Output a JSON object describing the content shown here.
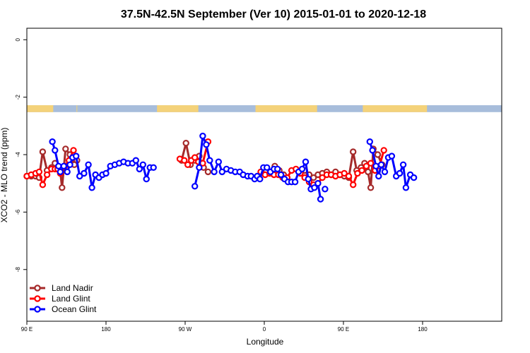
{
  "chart_data": {
    "type": "line",
    "title": "37.5N-42.5N September (Ver 10)   2015-01-01 to 2020-12-18",
    "xlabel": "Longitude",
    "ylabel": "XCO2 - MLO trend (ppm)",
    "xlim": [
      -90,
      450
    ],
    "ylim": [
      -9.8,
      0.4
    ],
    "x_ticks": [
      {
        "value": -90,
        "label": "90 E"
      },
      {
        "value": 0,
        "label": "180"
      },
      {
        "value": 90,
        "label": "90 W"
      },
      {
        "value": 180,
        "label": "0"
      },
      {
        "value": 270,
        "label": "90 E"
      },
      {
        "value": 360,
        "label": "180"
      }
    ],
    "y_ticks": [
      {
        "value": 0,
        "label": "0"
      },
      {
        "value": -2,
        "label": "-2"
      },
      {
        "value": -4,
        "label": "-4"
      },
      {
        "value": -6,
        "label": "-6"
      },
      {
        "value": -8,
        "label": "-8"
      }
    ],
    "legend_position": "bottom-left",
    "map_band": {
      "y_top": -2.28,
      "y_bottom": -2.52,
      "ocean_color": "#a7bddb",
      "land_color": "#f4d27a",
      "land_ranges": [
        [
          -90,
          -60
        ],
        [
          -33,
          -33.5
        ],
        [
          58,
          105
        ],
        [
          170,
          240
        ],
        [
          292,
          365
        ]
      ]
    },
    "series": [
      {
        "name": "Land Nadir",
        "color": "#a52a2a",
        "segments": [
          [
            [
              -90,
              -4.75
            ],
            [
              -85,
              -4.75
            ],
            [
              -80,
              -4.75
            ],
            [
              -76,
              -4.8
            ],
            [
              -72,
              -3.9
            ],
            [
              -67,
              -4.55
            ],
            [
              -62,
              -4.45
            ],
            [
              -58,
              -4.3
            ],
            [
              -55,
              -4.45
            ],
            [
              -52,
              -4.6
            ],
            [
              -50,
              -5.15
            ],
            [
              -46,
              -3.8
            ],
            [
              -41,
              -4.0
            ],
            [
              -36,
              -4.35
            ],
            [
              -33,
              -4.2
            ]
          ],
          [
            [
              86,
              -4.2
            ],
            [
              91,
              -3.6
            ],
            [
              96,
              -4.35
            ],
            [
              101,
              -4.2
            ],
            [
              106,
              -4.05
            ],
            [
              111,
              -4.45
            ],
            [
              116,
              -4.6
            ]
          ],
          [
            [
              182,
              -4.55
            ],
            [
              187,
              -4.6
            ],
            [
              192,
              -4.4
            ],
            [
              197,
              -4.55
            ],
            [
              202,
              -4.7
            ]
          ],
          [
            [
              226,
              -4.55
            ],
            [
              231,
              -4.7
            ],
            [
              236,
              -4.8
            ],
            [
              241,
              -4.7
            ],
            [
              246,
              -4.65
            ],
            [
              251,
              -4.6
            ],
            [
              256,
              -4.7
            ],
            [
              261,
              -4.6
            ],
            [
              266,
              -4.7
            ],
            [
              271,
              -4.75
            ],
            [
              276,
              -4.8
            ],
            [
              281,
              -3.9
            ],
            [
              285,
              -4.55
            ],
            [
              290,
              -4.45
            ],
            [
              294,
              -4.3
            ],
            [
              296,
              -4.45
            ],
            [
              298,
              -4.6
            ],
            [
              301,
              -5.15
            ],
            [
              304,
              -3.8
            ],
            [
              309,
              -4.0
            ],
            [
              314,
              -4.35
            ]
          ]
        ]
      },
      {
        "name": "Land Glint",
        "color": "#ff0000",
        "segments": [
          [
            [
              -90,
              -4.75
            ],
            [
              -85,
              -4.7
            ],
            [
              -80,
              -4.65
            ],
            [
              -76,
              -4.6
            ],
            [
              -72,
              -5.05
            ],
            [
              -67,
              -4.7
            ],
            [
              -62,
              -4.5
            ],
            [
              -58,
              -4.5
            ],
            [
              -55,
              -4.5
            ],
            [
              -52,
              -4.65
            ],
            [
              -47,
              -4.4
            ],
            [
              -42,
              -4.2
            ],
            [
              -37,
              -3.85
            ]
          ],
          [
            [
              84,
              -4.15
            ],
            [
              89,
              -4.2
            ],
            [
              93,
              -4.35
            ],
            [
              97,
              -4.2
            ],
            [
              101,
              -4.1
            ],
            [
              105,
              -4.25
            ],
            [
              110,
              -4.3
            ],
            [
              116,
              -3.55
            ]
          ],
          [
            [
              176,
              -4.6
            ],
            [
              181,
              -4.7
            ],
            [
              186,
              -4.65
            ],
            [
              191,
              -4.7
            ],
            [
              196,
              -4.7
            ],
            [
              201,
              -4.8
            ],
            [
              206,
              -4.8
            ],
            [
              211,
              -4.55
            ],
            [
              216,
              -4.5
            ],
            [
              221,
              -4.65
            ],
            [
              226,
              -4.8
            ],
            [
              231,
              -4.95
            ],
            [
              236,
              -5.05
            ],
            [
              241,
              -5.0
            ],
            [
              246,
              -4.8
            ],
            [
              251,
              -4.7
            ],
            [
              256,
              -4.7
            ],
            [
              261,
              -4.75
            ],
            [
              266,
              -4.7
            ],
            [
              271,
              -4.65
            ],
            [
              276,
              -4.75
            ],
            [
              281,
              -5.05
            ],
            [
              286,
              -4.65
            ],
            [
              291,
              -4.55
            ],
            [
              296,
              -4.4
            ],
            [
              301,
              -4.3
            ],
            [
              306,
              -4.55
            ],
            [
              311,
              -4.4
            ],
            [
              316,
              -3.85
            ]
          ]
        ]
      },
      {
        "name": "Ocean Glint",
        "color": "#0000ff",
        "segments": [
          [
            [
              -61,
              -3.55
            ],
            [
              -58,
              -3.85
            ],
            [
              -54,
              -4.4
            ],
            [
              -52,
              -4.6
            ],
            [
              -48,
              -4.4
            ],
            [
              -44,
              -4.6
            ],
            [
              -41,
              -4.35
            ],
            [
              -38,
              -4.1
            ],
            [
              -34,
              -4.05
            ],
            [
              -30,
              -4.75
            ],
            [
              -25,
              -4.65
            ],
            [
              -20,
              -4.35
            ],
            [
              -16,
              -5.15
            ],
            [
              -12,
              -4.7
            ],
            [
              -8,
              -4.8
            ],
            [
              -4,
              -4.7
            ],
            [
              0,
              -4.65
            ],
            [
              5,
              -4.4
            ],
            [
              10,
              -4.35
            ],
            [
              15,
              -4.3
            ],
            [
              20,
              -4.25
            ],
            [
              25,
              -4.3
            ],
            [
              30,
              -4.3
            ],
            [
              34,
              -4.2
            ],
            [
              38,
              -4.5
            ],
            [
              42,
              -4.35
            ],
            [
              46,
              -4.85
            ],
            [
              50,
              -4.45
            ],
            [
              54,
              -4.45
            ]
          ],
          [
            [
              101,
              -5.1
            ],
            [
              106,
              -4.45
            ],
            [
              110,
              -3.35
            ],
            [
              114,
              -3.65
            ],
            [
              118,
              -4.2
            ],
            [
              123,
              -4.6
            ],
            [
              128,
              -4.25
            ],
            [
              132,
              -4.6
            ],
            [
              137,
              -4.5
            ],
            [
              142,
              -4.55
            ],
            [
              147,
              -4.6
            ],
            [
              152,
              -4.6
            ],
            [
              156,
              -4.7
            ],
            [
              161,
              -4.75
            ],
            [
              165,
              -4.75
            ],
            [
              169,
              -4.85
            ],
            [
              172,
              -4.75
            ],
            [
              175,
              -4.85
            ],
            [
              179,
              -4.45
            ],
            [
              183,
              -4.45
            ],
            [
              187,
              -4.6
            ],
            [
              191,
              -4.5
            ],
            [
              195,
              -4.5
            ],
            [
              199,
              -4.7
            ],
            [
              203,
              -4.85
            ],
            [
              207,
              -4.95
            ],
            [
              211,
              -4.95
            ],
            [
              215,
              -4.95
            ],
            [
              219,
              -4.6
            ],
            [
              223,
              -4.5
            ],
            [
              227,
              -4.25
            ],
            [
              230,
              -4.85
            ],
            [
              233,
              -5.2
            ],
            [
              237,
              -5.15
            ],
            [
              241,
              -5.0
            ],
            [
              244,
              -5.55
            ]
          ],
          [
            [
              249,
              -5.2
            ]
          ],
          [
            [
              300,
              -3.55
            ],
            [
              303,
              -3.85
            ],
            [
              307,
              -4.4
            ],
            [
              310,
              -4.75
            ],
            [
              313,
              -4.35
            ],
            [
              317,
              -4.6
            ],
            [
              321,
              -4.1
            ],
            [
              325,
              -4.05
            ],
            [
              330,
              -4.75
            ],
            [
              334,
              -4.65
            ],
            [
              338,
              -4.35
            ],
            [
              341,
              -5.15
            ],
            [
              346,
              -4.7
            ],
            [
              350,
              -4.8
            ]
          ]
        ]
      }
    ]
  }
}
